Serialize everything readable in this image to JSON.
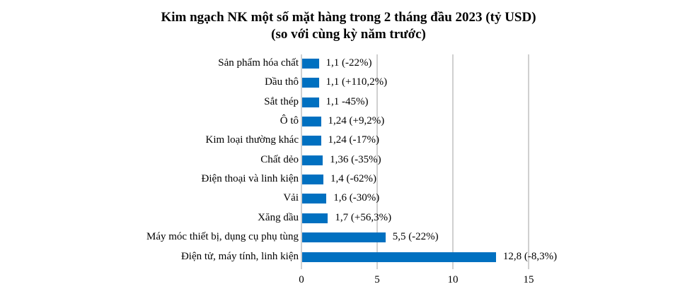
{
  "chart_data": {
    "type": "bar",
    "orientation": "horizontal",
    "title": "Kim ngạch NK một số mặt hàng trong 2 tháng đầu 2023 (tỷ USD)",
    "subtitle": "(so với cùng kỳ năm trước)",
    "xlabel": "",
    "ylabel": "",
    "xlim": [
      0,
      15
    ],
    "x_ticks": [
      "0",
      "5",
      "10",
      "15"
    ],
    "grid": true,
    "legend": null,
    "bar_color": "#0070c0",
    "categories": [
      "Sản phẩm hóa chất",
      "Dầu thô",
      "Sắt thép",
      "Ô tô",
      "Kim loại thường khác",
      "Chất dẻo",
      "Điện thoại và linh kiện",
      "Vải",
      "Xăng dầu",
      "Máy móc thiết bị, dụng cụ phụ tùng",
      "Điện tử, máy tính, linh kiện"
    ],
    "values": [
      1.1,
      1.1,
      1.1,
      1.24,
      1.24,
      1.36,
      1.4,
      1.6,
      1.7,
      5.5,
      12.8
    ],
    "data_labels": [
      "1,1 (-22%)",
      "1,1 (+110,2%)",
      "1,1 -45%)",
      "1,24 (+9,2%)",
      "1,24 (-17%)",
      "1,36 (-35%)",
      "1,4 (-62%)",
      "1,6 (-30%)",
      "1,7 (+56,3%)",
      "5,5 (-22%)",
      "12,8 (-8,3%)"
    ]
  }
}
